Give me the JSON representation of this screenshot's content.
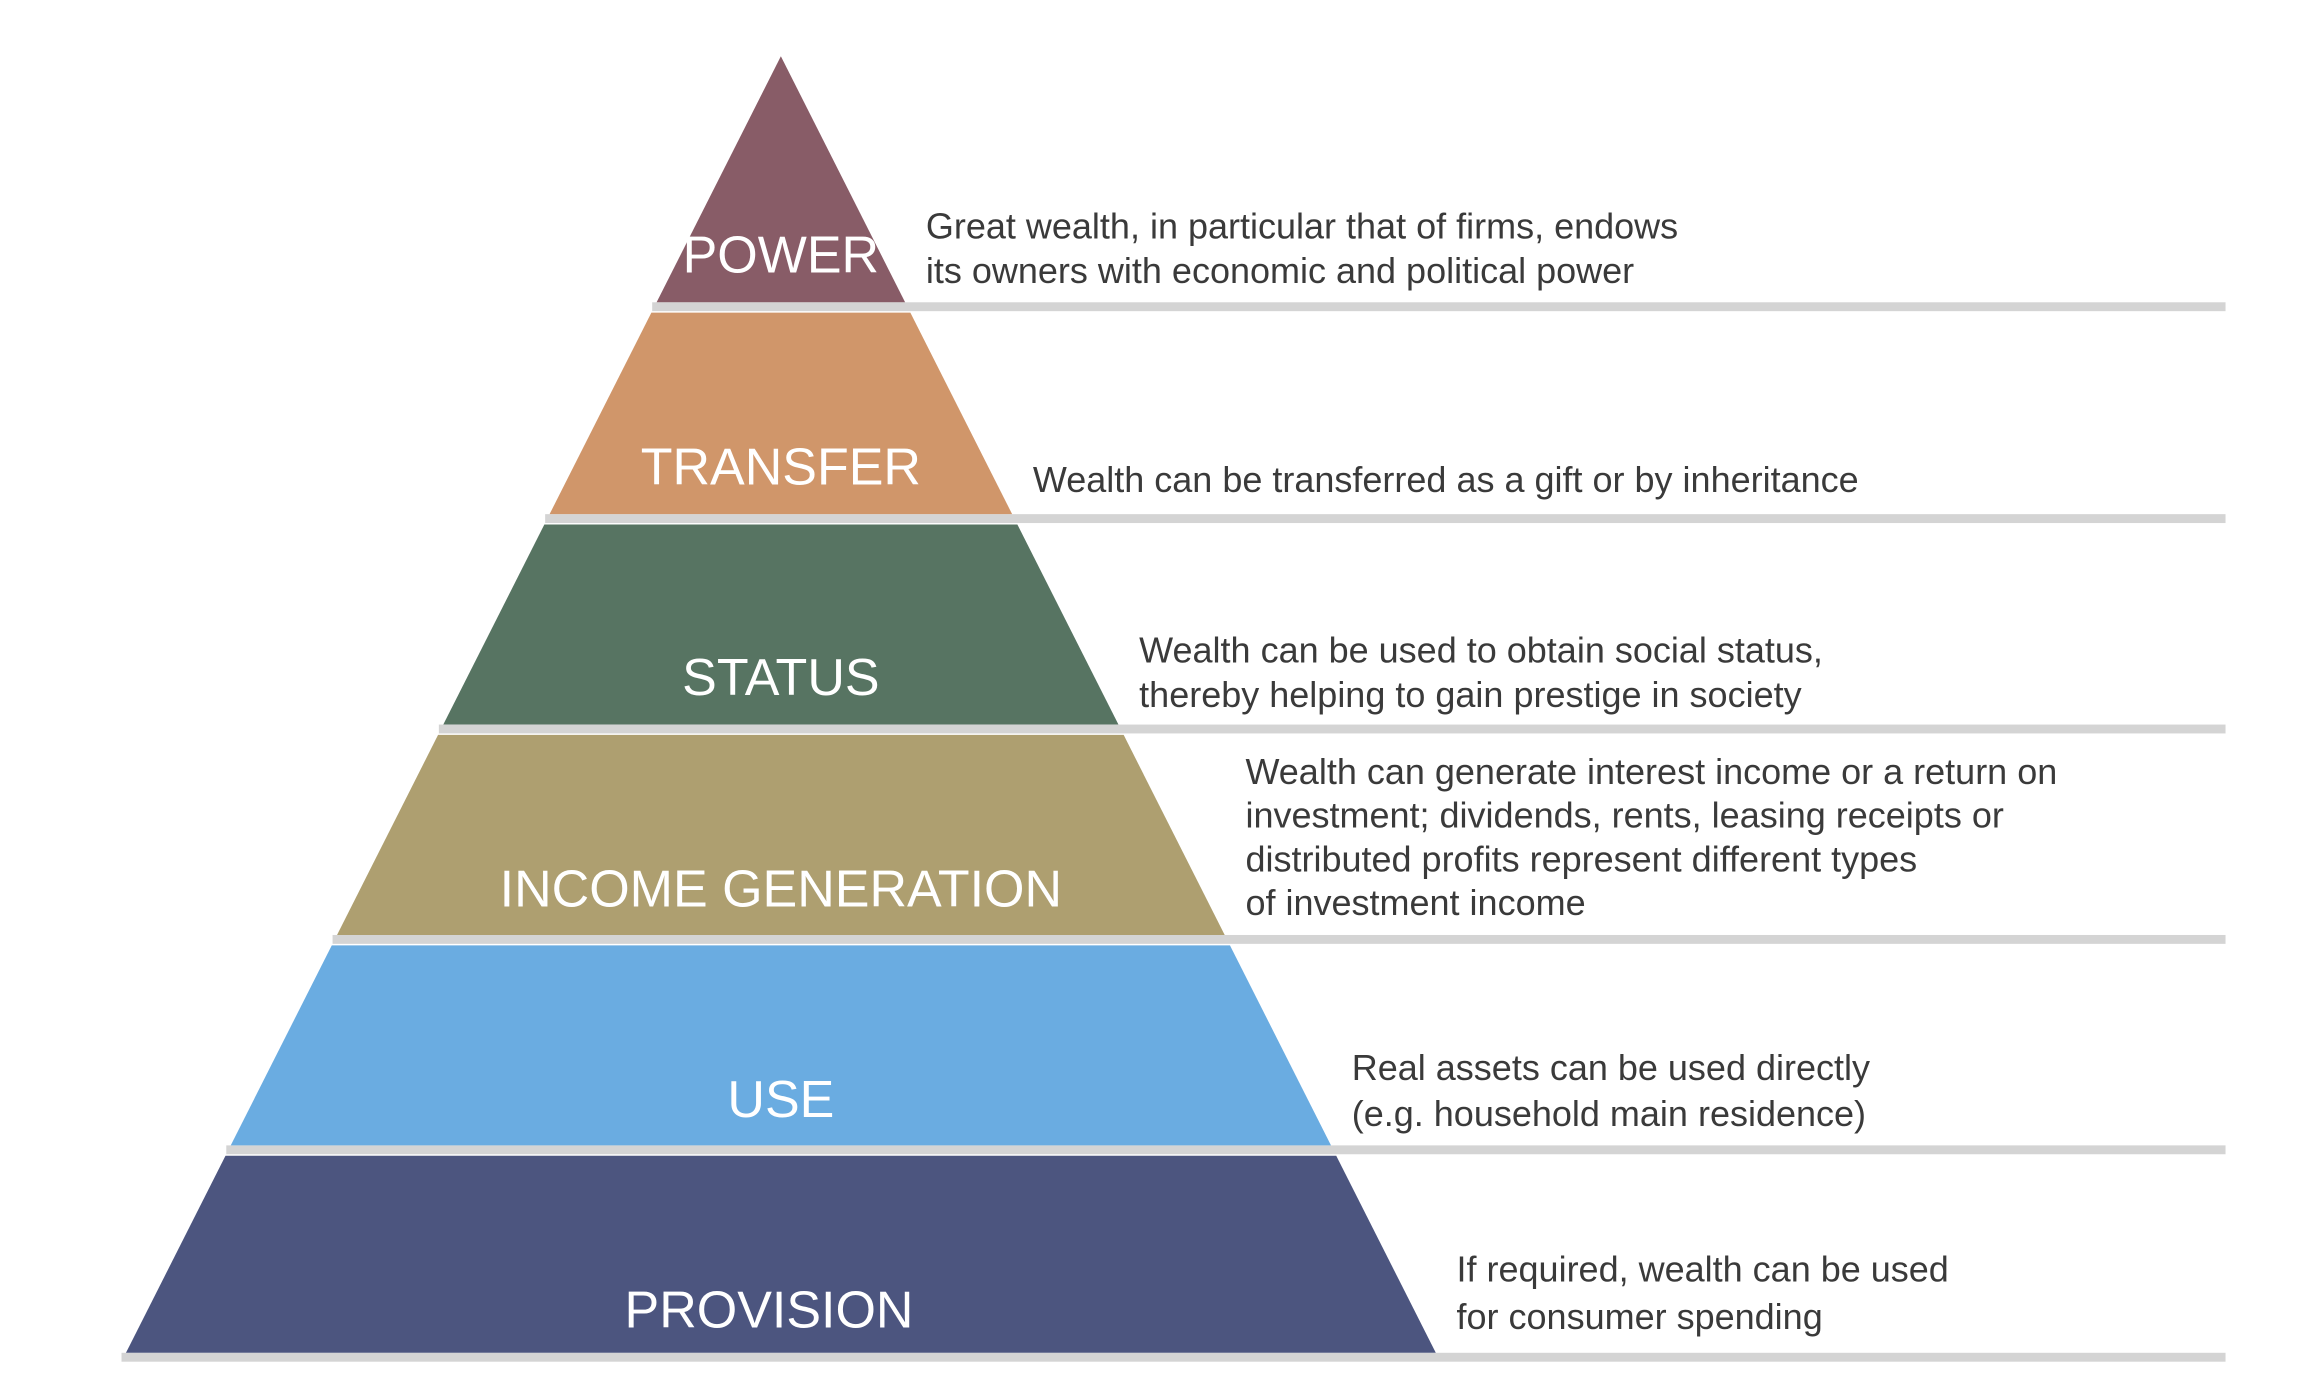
{
  "pyramid": {
    "tiers": [
      {
        "label": "POWER",
        "color": "#885c67",
        "description": [
          "Great wealth, in particular that of firms, endows",
          "its owners with economic and political power"
        ]
      },
      {
        "label": "TRANSFER",
        "color": "#d0966a",
        "description": [
          "Wealth can be transferred as a gift or by inheritance"
        ]
      },
      {
        "label": "STATUS",
        "color": "#577462",
        "description": [
          "Wealth can be used to obtain social status,",
          "thereby helping to gain prestige in society"
        ]
      },
      {
        "label": "INCOME GENERATION",
        "color": "#ae9f70",
        "description": [
          "Wealth can generate interest income or a return on",
          "investment; dividends, rents, leasing receipts or",
          "distributed profits represent different types",
          "of investment income"
        ]
      },
      {
        "label": "USE",
        "color": "#6aace1",
        "description": [
          "Real assets can be used directly",
          "(e.g. household main residence)"
        ]
      },
      {
        "label": "PROVISION",
        "color": "#4c557f",
        "description": [
          "If required, wealth can be used",
          "for consumer spending"
        ]
      }
    ],
    "separator_color": "#d4d4d4"
  }
}
